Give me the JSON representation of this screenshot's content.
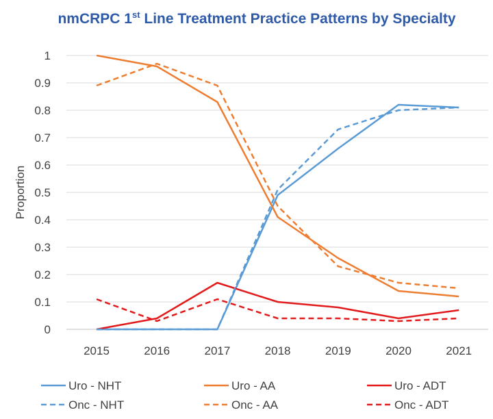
{
  "chart_data": {
    "type": "line",
    "title": {
      "prefix": "nmCRPC 1",
      "superscript": "st",
      "suffix": " Line Treatment Practice Patterns by Specialty"
    },
    "xlabel": "",
    "ylabel": "Proportion",
    "x": [
      "2015",
      "2016",
      "2017",
      "2018",
      "2019",
      "2020",
      "2021"
    ],
    "y_ticks": [
      "0",
      "0.1",
      "0.2",
      "0.3",
      "0.4",
      "0.5",
      "0.6",
      "0.7",
      "0.8",
      "0.9",
      "1"
    ],
    "ylim": [
      0,
      1
    ],
    "grid": true,
    "legend_position": "bottom",
    "series": [
      {
        "name": "Uro - NHT",
        "color": "#5b9bd5",
        "dash": "solid",
        "values": [
          0,
          0,
          0,
          0.49,
          0.66,
          0.82,
          0.81
        ]
      },
      {
        "name": "Uro - AA",
        "color": "#ed7d31",
        "dash": "solid",
        "values": [
          1.0,
          0.96,
          0.83,
          0.41,
          0.26,
          0.14,
          0.12
        ]
      },
      {
        "name": "Uro - ADT",
        "color": "#e31a1c",
        "dash": "solid",
        "values": [
          0,
          0.04,
          0.17,
          0.1,
          0.08,
          0.04,
          0.07
        ]
      },
      {
        "name": "Onc - NHT",
        "color": "#5b9bd5",
        "dash": "dashed",
        "values": [
          0,
          0,
          0,
          0.51,
          0.73,
          0.8,
          0.81
        ]
      },
      {
        "name": "Onc - AA",
        "color": "#ed7d31",
        "dash": "dashed",
        "values": [
          0.89,
          0.97,
          0.89,
          0.45,
          0.23,
          0.17,
          0.15
        ]
      },
      {
        "name": "Onc - ADT",
        "color": "#e31a1c",
        "dash": "dashed",
        "values": [
          0.11,
          0.03,
          0.11,
          0.04,
          0.04,
          0.03,
          0.04
        ]
      }
    ]
  }
}
